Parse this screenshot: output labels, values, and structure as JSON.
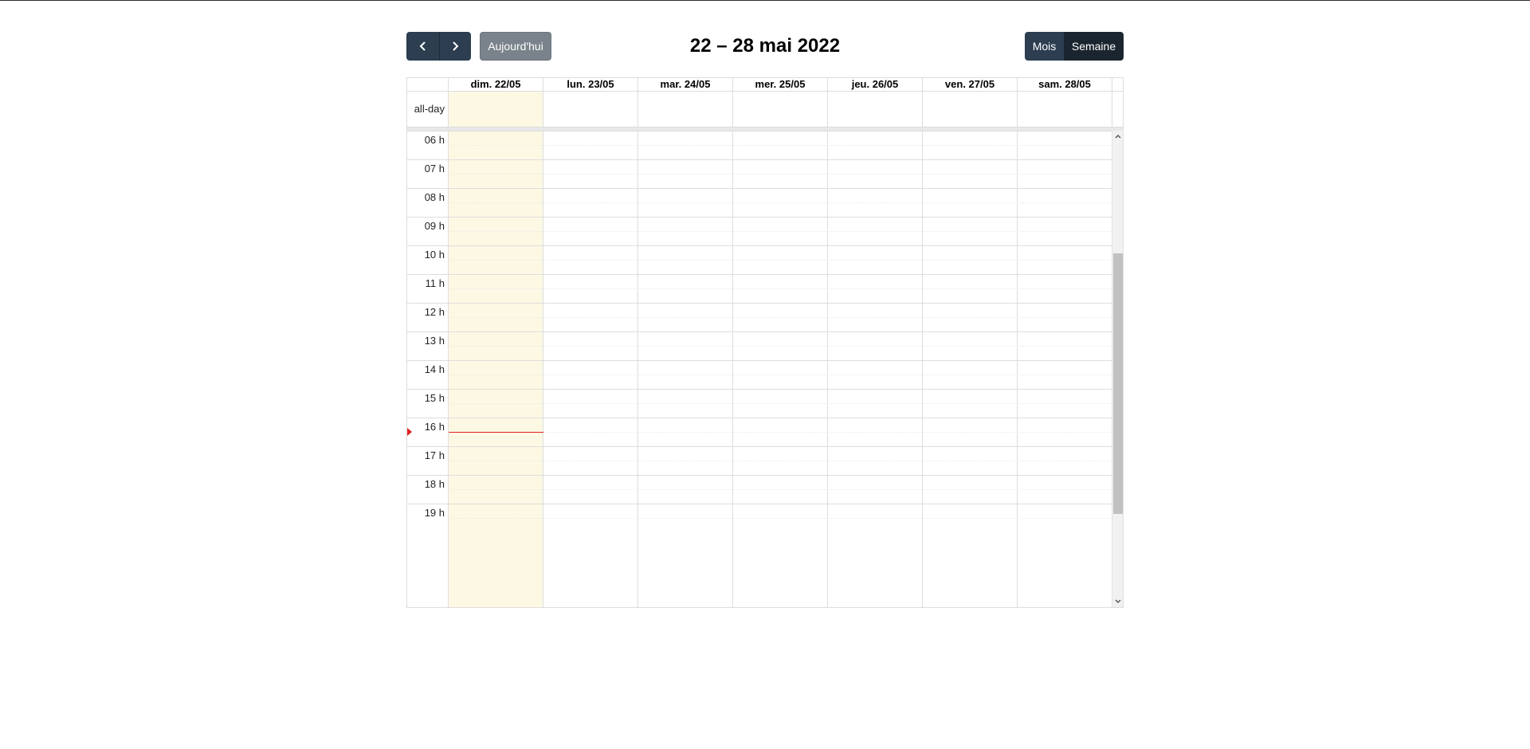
{
  "toolbar": {
    "prev_icon": "chevron-left-icon",
    "next_icon": "chevron-right-icon",
    "today_label": "Aujourd'hui",
    "title": "22 – 28 mai 2022",
    "month_label": "Mois",
    "week_label": "Semaine",
    "active_view": "Semaine"
  },
  "grid": {
    "allday_label": "all-day",
    "days": [
      {
        "label": "dim. 22/05",
        "today": true
      },
      {
        "label": "lun. 23/05",
        "today": false
      },
      {
        "label": "mar. 24/05",
        "today": false
      },
      {
        "label": "mer. 25/05",
        "today": false
      },
      {
        "label": "jeu. 26/05",
        "today": false
      },
      {
        "label": "ven. 27/05",
        "today": false
      },
      {
        "label": "sam. 28/05",
        "today": false
      }
    ],
    "hours": [
      "06 h",
      "07 h",
      "08 h",
      "09 h",
      "10 h",
      "11 h",
      "12 h",
      "13 h",
      "14 h",
      "15 h",
      "16 h",
      "17 h",
      "18 h",
      "19 h"
    ],
    "now_indicator_time": "16:30"
  },
  "colors": {
    "primary_button": "#2c3e50",
    "active_button": "#1a252f",
    "today_button": "#7a838c",
    "today_column": "#fcf8e3",
    "now_indicator": "#e02020",
    "grid_line": "#dddddd"
  }
}
